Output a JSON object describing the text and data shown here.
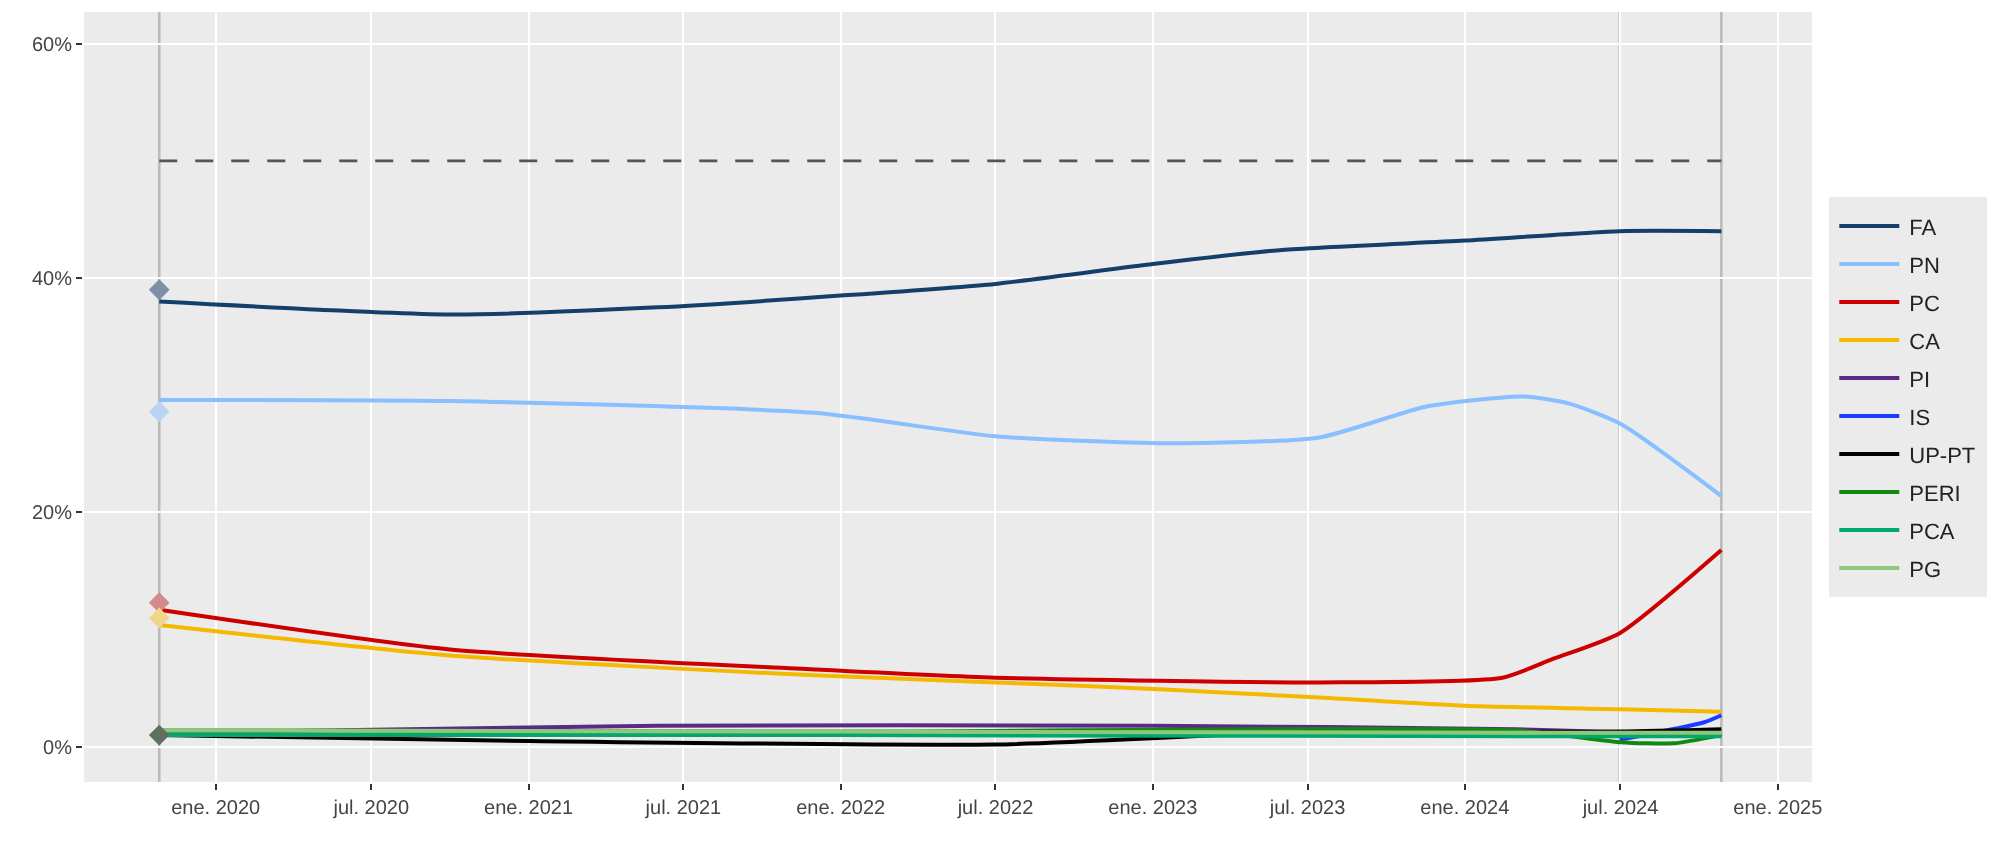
{
  "chart_data": {
    "type": "line",
    "xlim": [
      "2019-07-31",
      "2025-02-10"
    ],
    "ylim": [
      -3,
      62.7
    ],
    "xticks": [
      {
        "value": "2020-01-01",
        "label": "ene. 2020"
      },
      {
        "value": "2020-07-01",
        "label": "jul. 2020"
      },
      {
        "value": "2021-01-01",
        "label": "ene. 2021"
      },
      {
        "value": "2021-07-01",
        "label": "jul. 2021"
      },
      {
        "value": "2022-01-01",
        "label": "ene. 2022"
      },
      {
        "value": "2022-07-01",
        "label": "jul. 2022"
      },
      {
        "value": "2023-01-01",
        "label": "ene. 2023"
      },
      {
        "value": "2023-07-01",
        "label": "jul. 2023"
      },
      {
        "value": "2024-01-01",
        "label": "ene. 2024"
      },
      {
        "value": "2024-07-01",
        "label": "jul. 2024"
      },
      {
        "value": "2025-01-01",
        "label": "ene. 2025"
      }
    ],
    "yticks": [
      {
        "value": 0,
        "label": "0%"
      },
      {
        "value": 20,
        "label": "20%"
      },
      {
        "value": 40,
        "label": "40%"
      },
      {
        "value": 60,
        "label": "60%"
      }
    ],
    "grid": true,
    "legend": "right",
    "line_style": "solid",
    "marker": "none",
    "ref_lines": [
      {
        "axis": "y",
        "value": 50,
        "color": "#555555",
        "line_style": "dashed"
      },
      {
        "axis": "x",
        "value": "2019-10-27",
        "color": "#bbbbbb",
        "line_style": "solid"
      },
      {
        "axis": "x",
        "value": "2024-06-30",
        "color": "#bbbbbb",
        "line_style": "solid"
      },
      {
        "axis": "x",
        "value": "2024-10-27",
        "color": "#bbbbbb",
        "line_style": "solid"
      }
    ],
    "series": [
      {
        "name": "FA",
        "color": "#143f6b",
        "x": [
          "2019-10-27",
          "2020-10-01",
          "2021-06-01",
          "2022-01-01",
          "2022-07-01",
          "2023-01-01",
          "2023-06-01",
          "2024-01-01",
          "2024-06-30",
          "2024-10-27"
        ],
        "values": [
          38.0,
          36.9,
          37.5,
          38.5,
          39.5,
          41.2,
          42.4,
          43.2,
          44.0,
          44.0
        ]
      },
      {
        "name": "PN",
        "color": "#87bfff",
        "x": [
          "2019-10-27",
          "2020-10-01",
          "2021-12-01",
          "2022-07-01",
          "2023-01-15",
          "2023-07-15",
          "2023-11-15",
          "2024-03-08",
          "2024-05-01",
          "2024-06-30",
          "2024-10-27"
        ],
        "values": [
          29.6,
          29.5,
          28.5,
          26.5,
          25.9,
          26.4,
          29.0,
          29.9,
          29.3,
          27.6,
          21.4
        ]
      },
      {
        "name": "PC",
        "color": "#cc0000",
        "x": [
          "2019-10-27",
          "2020-10-01",
          "2021-12-01",
          "2022-07-01",
          "2023-07-15",
          "2024-02-14",
          "2024-04-13",
          "2024-06-30",
          "2024-10-27"
        ],
        "values": [
          11.7,
          8.3,
          6.6,
          5.9,
          5.5,
          5.9,
          7.5,
          9.7,
          16.8
        ]
      },
      {
        "name": "CA",
        "color": "#f5b800",
        "x": [
          "2019-10-27",
          "2020-10-01",
          "2021-12-01",
          "2022-07-01",
          "2023-01-15",
          "2023-07-15",
          "2024-01-01",
          "2024-06-30",
          "2024-10-27"
        ],
        "values": [
          10.4,
          7.8,
          6.1,
          5.5,
          4.9,
          4.2,
          3.5,
          3.2,
          3.0
        ]
      },
      {
        "name": "PI",
        "color": "#5b2a86",
        "x": [
          "2019-10-27",
          "2021-06-01",
          "2023-01-01",
          "2024-03-01",
          "2024-10-27"
        ],
        "values": [
          1.2,
          1.8,
          1.8,
          1.5,
          1.0
        ]
      },
      {
        "name": "IS",
        "color": "#1a3cff",
        "x": [
          "2024-06-30",
          "2024-10-07",
          "2024-10-27"
        ],
        "values": [
          0.6,
          2.1,
          2.7
        ]
      },
      {
        "name": "UP-PT",
        "color": "#000000",
        "x": [
          "2019-10-27",
          "2021-01-01",
          "2022-07-01",
          "2023-06-01",
          "2024-06-30",
          "2024-10-27"
        ],
        "values": [
          1.0,
          0.5,
          0.2,
          1.2,
          1.3,
          1.5
        ]
      },
      {
        "name": "PERI",
        "color": "#128a12",
        "x": [
          "2019-10-27",
          "2022-01-01",
          "2024-03-01",
          "2024-06-30",
          "2024-09-01",
          "2024-10-27"
        ],
        "values": [
          1.4,
          1.3,
          1.4,
          0.4,
          0.3,
          1.0
        ]
      },
      {
        "name": "PCA",
        "color": "#00a86b",
        "x": [
          "2019-10-27",
          "2022-01-01",
          "2024-06-30",
          "2024-10-27"
        ],
        "values": [
          1.0,
          1.0,
          0.9,
          0.9
        ]
      },
      {
        "name": "PG",
        "color": "#8fc87a",
        "x": [
          "2019-10-27",
          "2022-01-01",
          "2024-06-30",
          "2024-10-27"
        ],
        "values": [
          1.4,
          1.3,
          1.2,
          1.2
        ]
      },
      {
        "type": "scatter",
        "marker": "diamond",
        "x": [
          "2019-10-27",
          "2019-10-27",
          "2019-10-27",
          "2019-10-27",
          "2019-10-27"
        ],
        "values": [
          39.0,
          28.6,
          12.3,
          11.0,
          1.0
        ],
        "colors": [
          "#7f8fa6",
          "#b8d4f2",
          "#d48a8a",
          "#f0d68a",
          "#607060"
        ]
      }
    ]
  }
}
